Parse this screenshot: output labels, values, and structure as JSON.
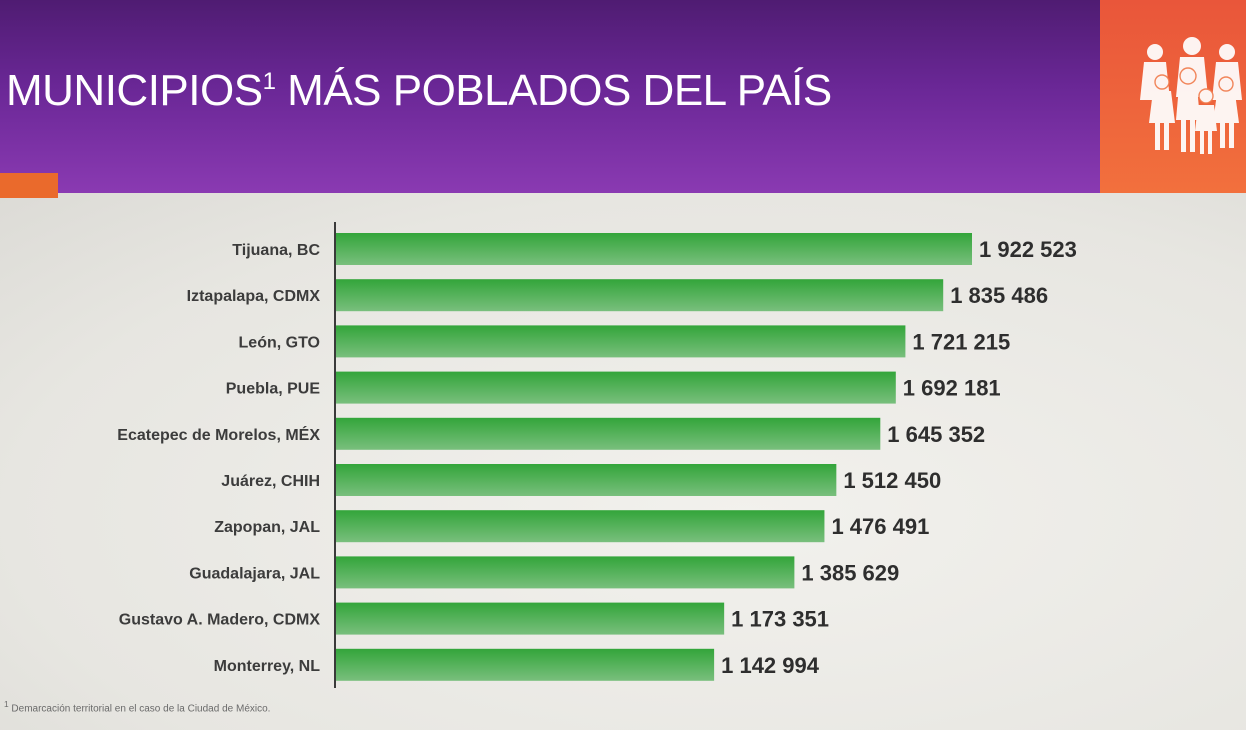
{
  "header": {
    "title": "MUNICIPIOS",
    "title_sup": "1",
    "title_rest": " MÁS POBLADOS DEL PAÍS"
  },
  "footnote": "Demarcación territorial en el caso de la Ciudad de México.",
  "icons": {
    "header": "family-group-icon"
  },
  "colors": {
    "header_purple": "#6a2796",
    "accent_orange": "#ee6436",
    "bar_green_top": "#33a53a",
    "bar_green_bottom": "#79bf7d"
  },
  "chart_data": {
    "type": "bar",
    "orientation": "horizontal",
    "title": "MUNICIPIOS¹ MÁS POBLADOS DEL PAÍS",
    "categories": [
      "Tijuana, BC",
      "Iztapalapa, CDMX",
      "León, GTO",
      "Puebla, PUE",
      "Ecatepec de Morelos, MÉX",
      "Juárez, CHIH",
      "Zapopan, JAL",
      "Guadalajara, JAL",
      "Gustavo A. Madero, CDMX",
      "Monterrey, NL"
    ],
    "values": [
      1922523,
      1835486,
      1721215,
      1692181,
      1645352,
      1512450,
      1476491,
      1385629,
      1173351,
      1142994
    ],
    "value_labels": [
      "1 922 523",
      "1 835 486",
      "1 721 215",
      "1 692 181",
      "1 645 352",
      "1 512 450",
      "1 476 491",
      "1 385 629",
      "1 173 351",
      "1 142 994"
    ],
    "xlabel": "",
    "ylabel": "",
    "grid": false,
    "legend": "none"
  }
}
